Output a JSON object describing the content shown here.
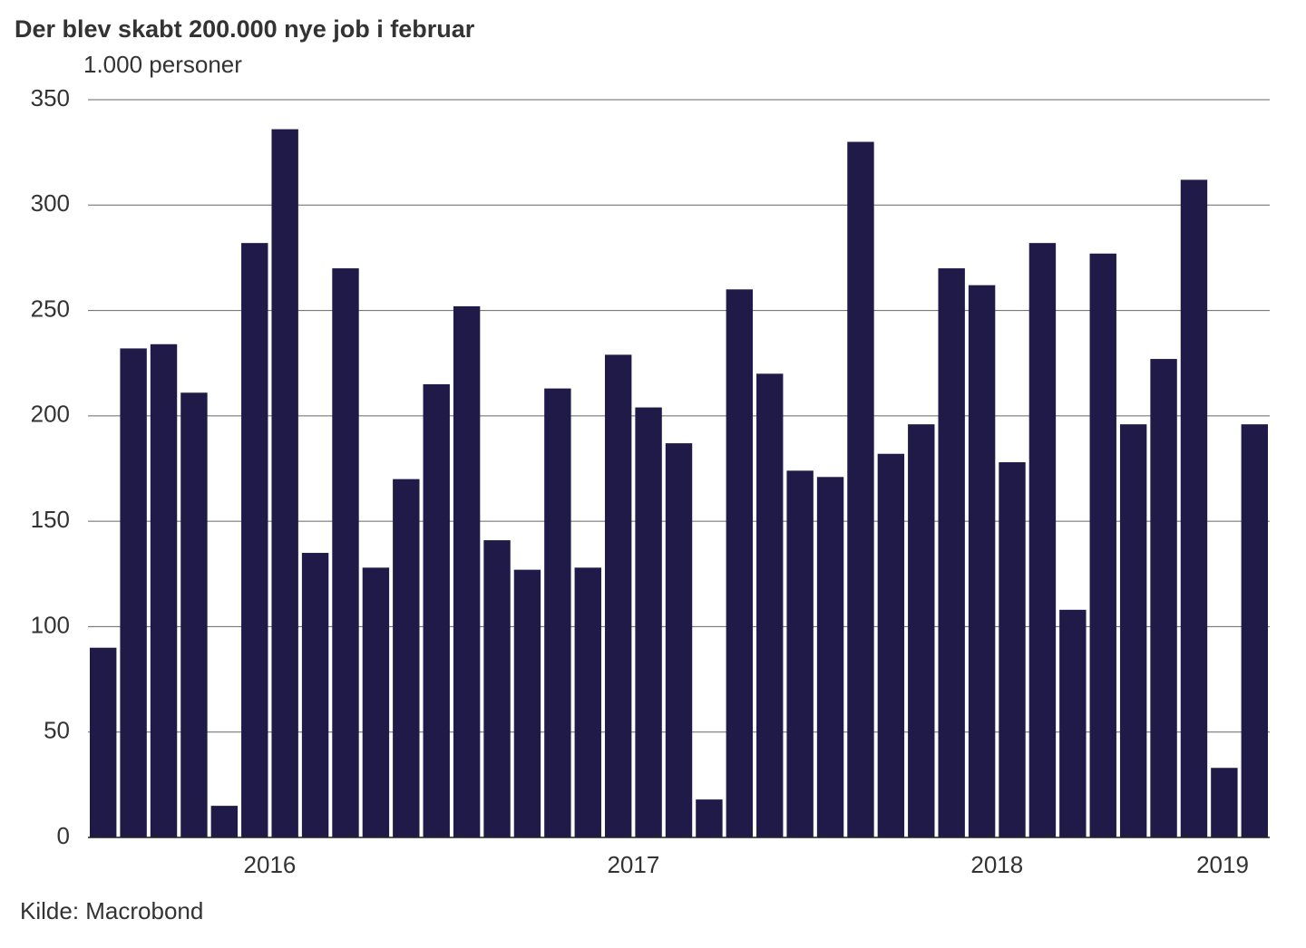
{
  "chart_data": {
    "type": "bar",
    "title": "Der blev skabt 200.000 nye job i februar",
    "y_label": "1.000 personer",
    "source": "Kilde: Macrobond",
    "categories": [
      null,
      null,
      null,
      null,
      null,
      null,
      "2016",
      null,
      null,
      null,
      null,
      null,
      null,
      null,
      null,
      null,
      null,
      null,
      "2017",
      null,
      null,
      null,
      null,
      null,
      null,
      null,
      null,
      null,
      null,
      null,
      "2018",
      null,
      null,
      null,
      null,
      null,
      null,
      null,
      "2019"
    ],
    "values": [
      90,
      232,
      234,
      211,
      15,
      282,
      336,
      135,
      270,
      128,
      170,
      215,
      252,
      141,
      127,
      213,
      128,
      229,
      204,
      187,
      18,
      260,
      220,
      174,
      171,
      330,
      182,
      196,
      270,
      262,
      178,
      282,
      108,
      277,
      196,
      227,
      312,
      33,
      196
    ],
    "color": "#1f1a47",
    "ylim": [
      0,
      350
    ],
    "yticks": [
      0,
      50,
      100,
      150,
      200,
      250,
      300,
      350
    ],
    "grid": true
  }
}
